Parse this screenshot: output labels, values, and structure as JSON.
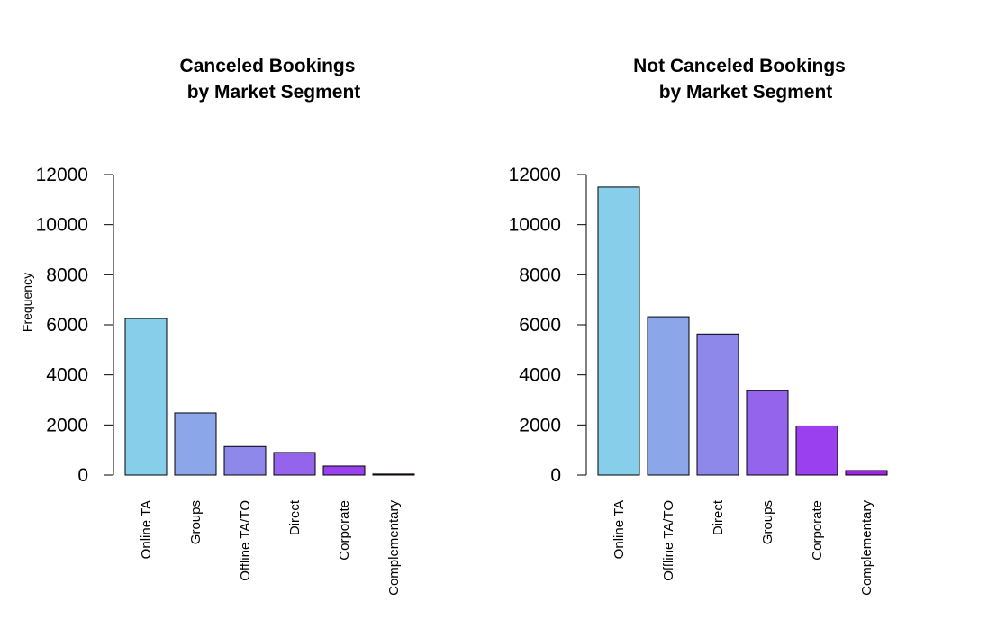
{
  "chart_data": [
    {
      "type": "bar",
      "title_lines": [
        "Canceled Bookings",
        "by Market Segment"
      ],
      "xlabel": "",
      "ylabel": "Frequency",
      "ylim": [
        0,
        12000
      ],
      "yticks": [
        0,
        2000,
        4000,
        6000,
        8000,
        10000,
        12000
      ],
      "categories": [
        "Online TA",
        "Groups",
        "Offline TA/TO",
        "Direct",
        "Corporate",
        "Complementary"
      ],
      "values": [
        6250,
        2480,
        1140,
        900,
        360,
        40
      ],
      "colors": [
        "#87CEEB",
        "#8BA6E9",
        "#8E88EB",
        "#9465EC",
        "#9A40EE",
        "#A020F0"
      ],
      "grid": false,
      "legend": "none"
    },
    {
      "type": "bar",
      "title_lines": [
        "Not Canceled Bookings",
        "by Market Segment"
      ],
      "xlabel": "",
      "ylabel": "",
      "ylim": [
        0,
        12000
      ],
      "yticks": [
        0,
        2000,
        4000,
        6000,
        8000,
        10000,
        12000
      ],
      "categories": [
        "Online TA",
        "Offline TA/TO",
        "Direct",
        "Groups",
        "Corporate",
        "Complementary"
      ],
      "values": [
        11500,
        6320,
        5630,
        3370,
        1960,
        180
      ],
      "colors": [
        "#87CEEB",
        "#8BA6E9",
        "#8E88EB",
        "#9465EC",
        "#9A40EE",
        "#A020F0"
      ],
      "grid": false,
      "legend": "none"
    }
  ]
}
